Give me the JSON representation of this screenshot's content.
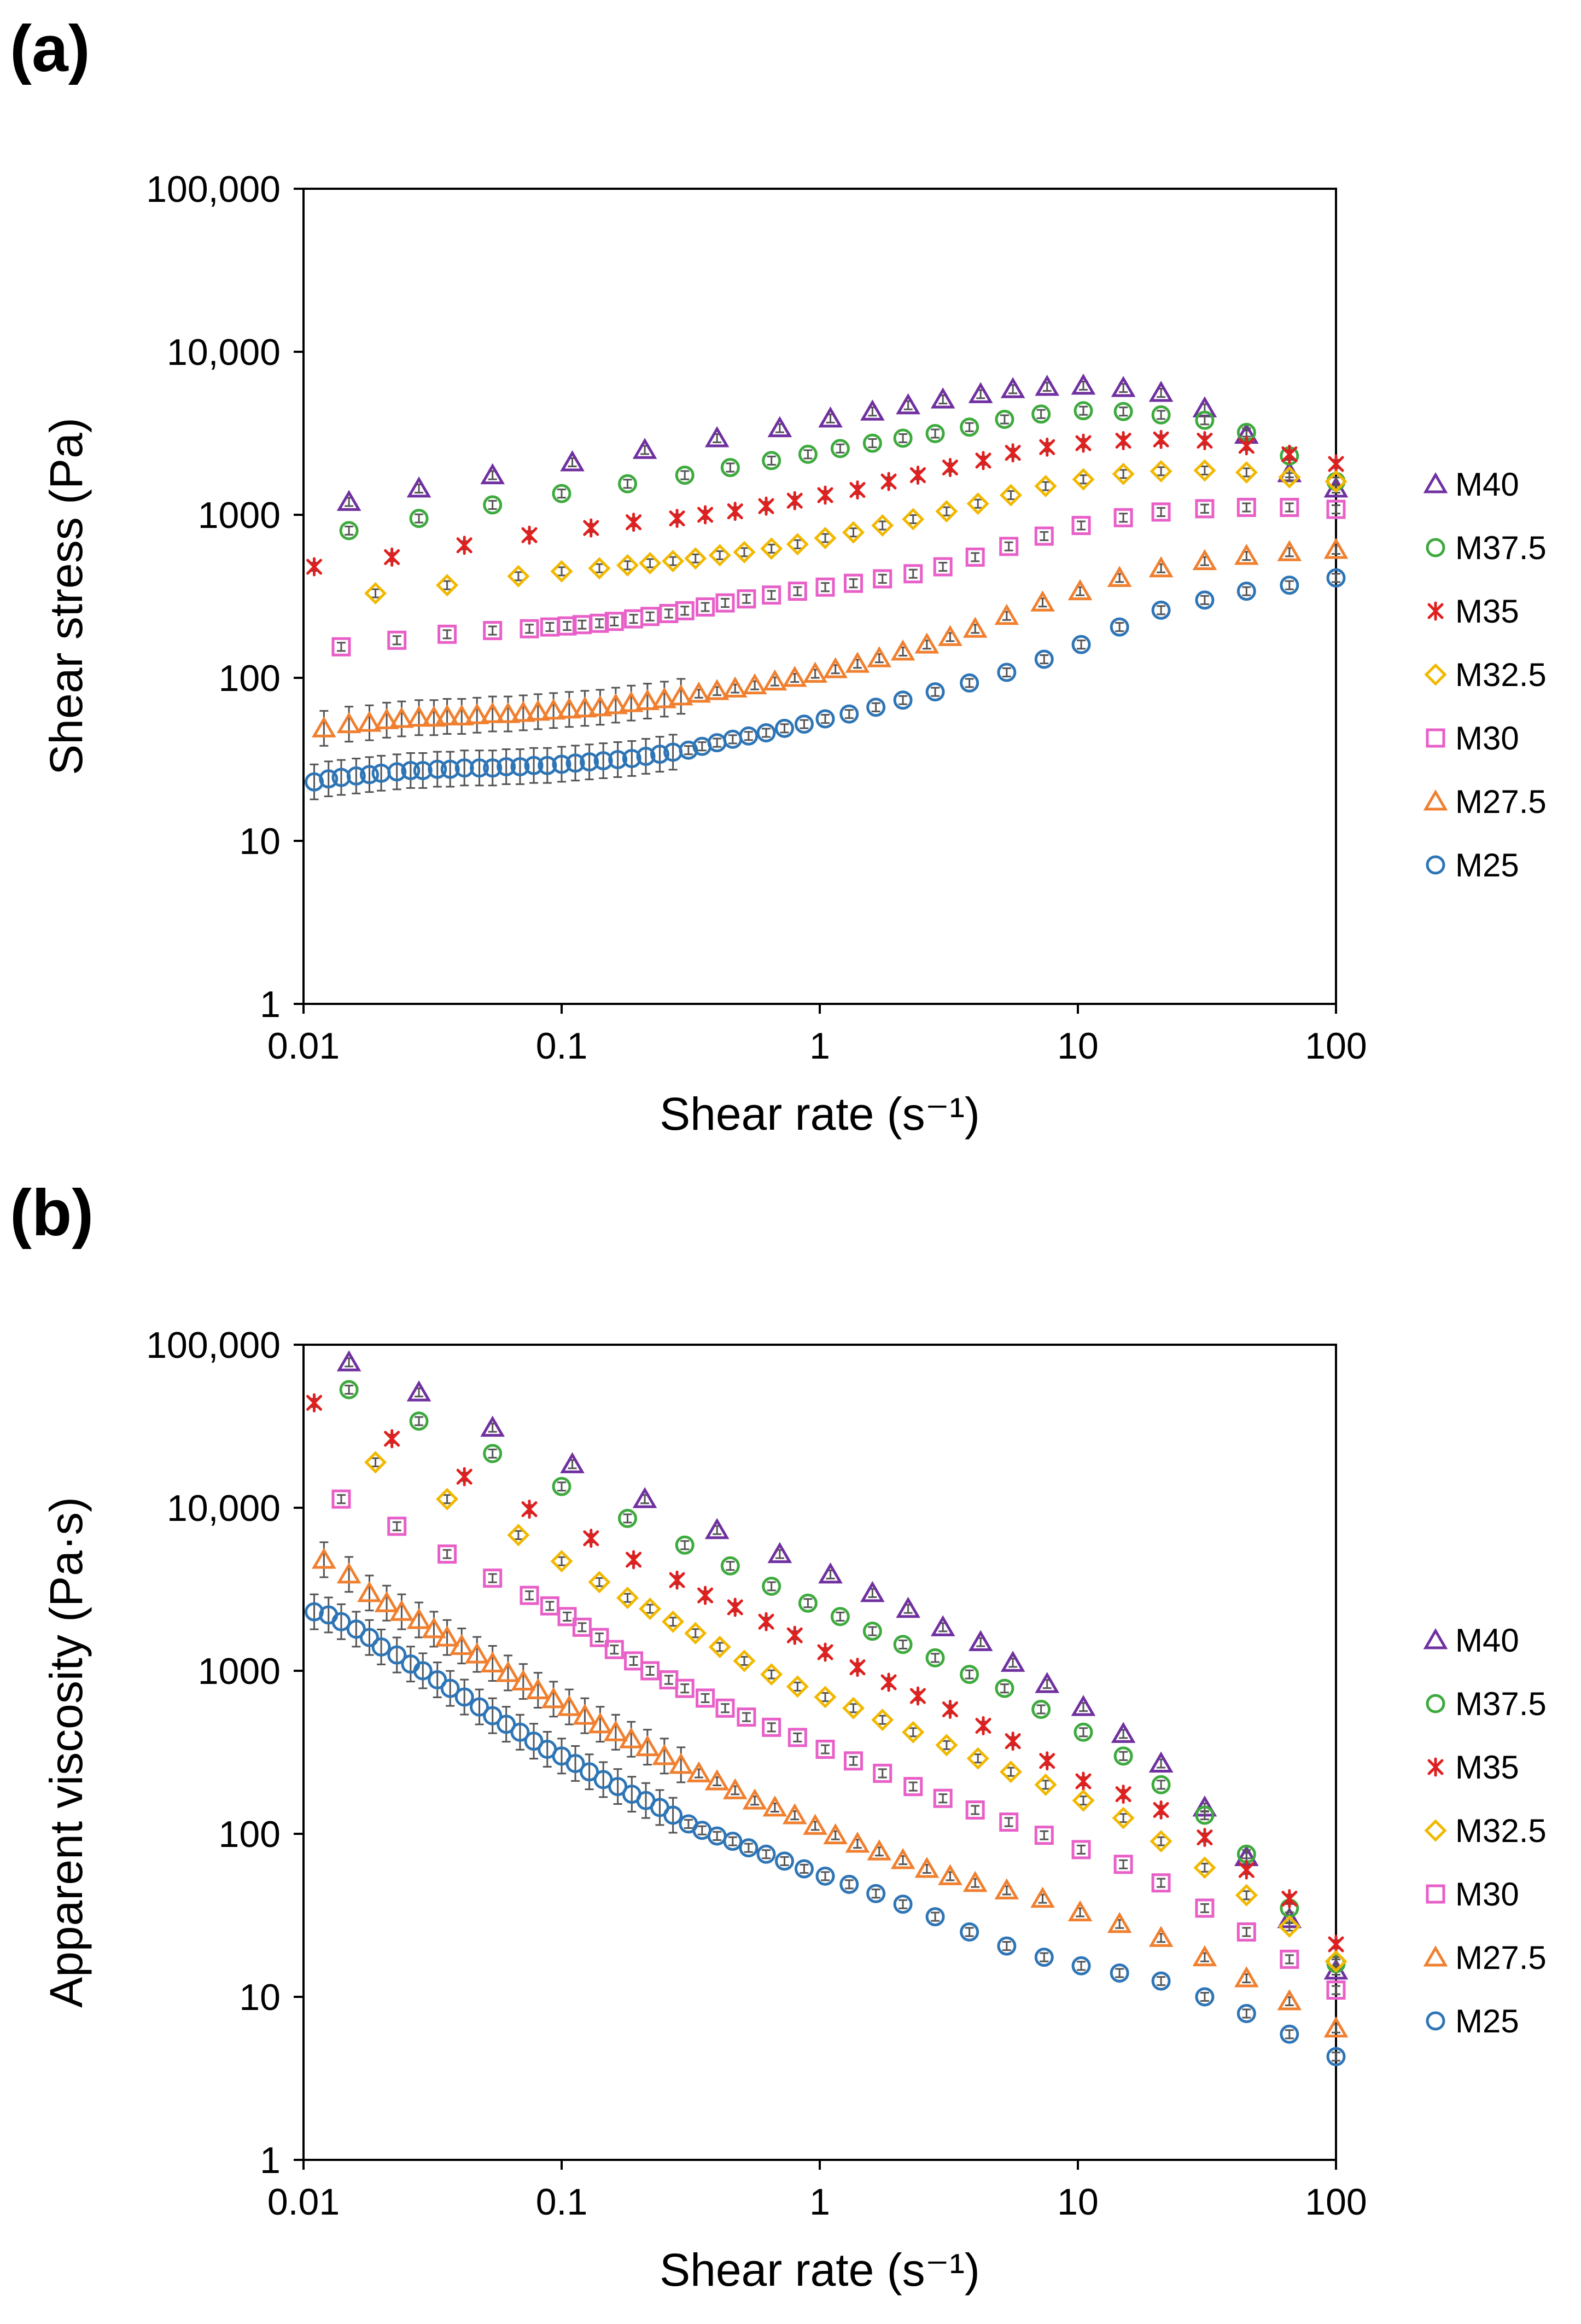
{
  "figure": {
    "panels": [
      {
        "label": "(a)"
      },
      {
        "label": "(b)"
      }
    ]
  },
  "chart_data": [
    {
      "type": "scatter",
      "panel": "(a)",
      "title": "",
      "xlabel": "Shear rate (s⁻¹)",
      "ylabel": "Shear stress (Pa)",
      "xscale": "log",
      "yscale": "log",
      "xlim": [
        0.01,
        100
      ],
      "ylim": [
        1,
        100000
      ],
      "xticks": [
        0.01,
        0.1,
        1,
        10,
        100
      ],
      "xtick_labels": [
        "0.01",
        "0.1",
        "1",
        "10",
        "100"
      ],
      "yticks": [
        1,
        10,
        100,
        1000,
        10000,
        100000
      ],
      "ytick_labels": [
        "1",
        "10",
        "100",
        "1000",
        "10,000",
        "100,000"
      ],
      "legend_position": "right",
      "series": [
        {
          "name": "M40",
          "marker": "triangle",
          "color": "#7030A0",
          "x": [
            0.015,
            0.028,
            0.054,
            0.11,
            0.21,
            0.4,
            0.7,
            1.1,
            1.6,
            2.2,
            3.0,
            4.2,
            5.6,
            7.6,
            10.5,
            15,
            21,
            31,
            45,
            66,
            100
          ],
          "y": [
            1200,
            1450,
            1750,
            2100,
            2500,
            2950,
            3400,
            3900,
            4300,
            4700,
            5100,
            5500,
            5900,
            6100,
            6200,
            6000,
            5600,
            4500,
            3100,
            1800,
            1450
          ]
        },
        {
          "name": "M37.5",
          "marker": "circle",
          "color": "#3DAA3D",
          "x": [
            0.015,
            0.028,
            0.054,
            0.1,
            0.18,
            0.3,
            0.45,
            0.65,
            0.9,
            1.2,
            1.6,
            2.1,
            2.8,
            3.8,
            5.2,
            7.2,
            10.5,
            15,
            21,
            31,
            45,
            66,
            100
          ],
          "y": [
            800,
            950,
            1150,
            1350,
            1550,
            1750,
            1950,
            2150,
            2350,
            2550,
            2750,
            2950,
            3150,
            3450,
            3850,
            4150,
            4350,
            4300,
            4100,
            3800,
            3200,
            2300,
            1600
          ]
        },
        {
          "name": "M35",
          "marker": "star",
          "color": "#E0201F",
          "x": [
            0.011,
            0.022,
            0.042,
            0.075,
            0.13,
            0.19,
            0.28,
            0.36,
            0.47,
            0.62,
            0.8,
            1.05,
            1.4,
            1.85,
            2.4,
            3.2,
            4.3,
            5.6,
            7.6,
            10.5,
            15,
            21,
            31,
            45,
            66,
            100
          ],
          "y": [
            480,
            550,
            650,
            750,
            830,
            900,
            950,
            1000,
            1050,
            1130,
            1220,
            1320,
            1420,
            1600,
            1750,
            1950,
            2150,
            2400,
            2600,
            2750,
            2850,
            2900,
            2850,
            2650,
            2350,
            2050
          ]
        },
        {
          "name": "M32.5",
          "marker": "diamond",
          "color": "#F2B800",
          "x": [
            0.019,
            0.036,
            0.068,
            0.1,
            0.14,
            0.18,
            0.22,
            0.27,
            0.33,
            0.41,
            0.51,
            0.65,
            0.82,
            1.05,
            1.35,
            1.75,
            2.3,
            3.1,
            4.1,
            5.5,
            7.5,
            10.5,
            15,
            21,
            31,
            45,
            66,
            100
          ],
          "y": [
            330,
            370,
            420,
            450,
            470,
            490,
            505,
            520,
            540,
            565,
            590,
            620,
            660,
            720,
            780,
            860,
            940,
            1050,
            1170,
            1320,
            1500,
            1650,
            1780,
            1850,
            1870,
            1820,
            1700,
            1600
          ]
        },
        {
          "name": "M30",
          "marker": "square",
          "color": "#E85FC8",
          "x": [
            0.014,
            0.023,
            0.036,
            0.054,
            0.075,
            0.09,
            0.105,
            0.12,
            0.14,
            0.16,
            0.19,
            0.22,
            0.26,
            0.3,
            0.36,
            0.43,
            0.52,
            0.65,
            0.82,
            1.05,
            1.35,
            1.75,
            2.3,
            3.0,
            4.0,
            5.4,
            7.4,
            10.3,
            15,
            21,
            31,
            45,
            66,
            100
          ],
          "y": [
            155,
            170,
            185,
            195,
            200,
            205,
            208,
            212,
            216,
            222,
            230,
            238,
            248,
            258,
            272,
            288,
            305,
            322,
            340,
            360,
            380,
            405,
            435,
            480,
            550,
            640,
            740,
            860,
            960,
            1040,
            1090,
            1110,
            1110,
            1080
          ]
        },
        {
          "name": "M27.5",
          "marker": "triangle",
          "color": "#F08030",
          "x": [
            0.012,
            0.015,
            0.018,
            0.021,
            0.024,
            0.028,
            0.032,
            0.036,
            0.041,
            0.047,
            0.054,
            0.062,
            0.071,
            0.081,
            0.093,
            0.107,
            0.123,
            0.141,
            0.162,
            0.186,
            0.215,
            0.25,
            0.29,
            0.34,
            0.4,
            0.47,
            0.56,
            0.67,
            0.8,
            0.96,
            1.15,
            1.4,
            1.7,
            2.1,
            2.6,
            3.2,
            4.0,
            5.3,
            7.3,
            10.2,
            14.5,
            21,
            31,
            45,
            66,
            100
          ],
          "y": [
            49,
            52,
            53,
            55,
            56,
            57,
            57,
            58,
            58,
            59,
            60,
            60,
            61,
            62,
            63,
            64,
            65,
            66,
            68,
            70,
            72,
            74,
            77,
            80,
            83,
            86,
            90,
            95,
            100,
            106,
            113,
            122,
            132,
            145,
            160,
            178,
            200,
            240,
            290,
            340,
            410,
            470,
            520,
            560,
            590,
            610
          ]
        },
        {
          "name": "M25",
          "marker": "circle",
          "color": "#2E75B6",
          "x": [
            0.011,
            0.0125,
            0.014,
            0.016,
            0.018,
            0.02,
            0.023,
            0.026,
            0.029,
            0.033,
            0.037,
            0.042,
            0.048,
            0.054,
            0.061,
            0.069,
            0.078,
            0.088,
            0.1,
            0.113,
            0.128,
            0.145,
            0.165,
            0.187,
            0.212,
            0.24,
            0.27,
            0.31,
            0.35,
            0.4,
            0.46,
            0.53,
            0.62,
            0.73,
            0.87,
            1.05,
            1.3,
            1.65,
            2.1,
            2.8,
            3.8,
            5.3,
            7.4,
            10.3,
            14.5,
            21,
            31,
            45,
            66,
            100
          ],
          "y": [
            23,
            24,
            24.5,
            25,
            25.5,
            26,
            26.5,
            27,
            27,
            27.5,
            27.5,
            28,
            28,
            28,
            28.5,
            28.5,
            29,
            29,
            29.5,
            30,
            30.5,
            31,
            31.5,
            32,
            33,
            34,
            35,
            36,
            38,
            40,
            42,
            44,
            46,
            49,
            52,
            56,
            60,
            66,
            73,
            82,
            93,
            108,
            130,
            160,
            205,
            260,
            300,
            340,
            370,
            410
          ]
        }
      ]
    },
    {
      "type": "scatter",
      "panel": "(b)",
      "title": "",
      "xlabel": "Shear rate (s⁻¹)",
      "ylabel": "Apparent viscosity (Pa·s)",
      "xscale": "log",
      "yscale": "log",
      "xlim": [
        0.01,
        100
      ],
      "ylim": [
        1,
        100000
      ],
      "xticks": [
        0.01,
        0.1,
        1,
        10,
        100
      ],
      "xtick_labels": [
        "0.01",
        "0.1",
        "1",
        "10",
        "100"
      ],
      "yticks": [
        1,
        10,
        100,
        1000,
        10000,
        100000
      ],
      "ytick_labels": [
        "1",
        "10",
        "100",
        "1000",
        "10,000",
        "100,000"
      ],
      "legend_position": "right",
      "series": [
        {
          "name": "M40",
          "marker": "triangle",
          "color": "#7030A0",
          "x": [
            0.015,
            0.028,
            0.054,
            0.11,
            0.21,
            0.4,
            0.7,
            1.1,
            1.6,
            2.2,
            3.0,
            4.2,
            5.6,
            7.6,
            10.5,
            15,
            21,
            31,
            45,
            66,
            100
          ],
          "y": [
            78000,
            51000,
            31000,
            18500,
            11300,
            7300,
            5200,
            3900,
            3000,
            2400,
            1850,
            1500,
            1120,
            830,
            600,
            410,
            270,
            145,
            72,
            30,
            14.5
          ]
        },
        {
          "name": "M37.5",
          "marker": "circle",
          "color": "#3DAA3D",
          "x": [
            0.015,
            0.028,
            0.054,
            0.1,
            0.18,
            0.3,
            0.45,
            0.65,
            0.9,
            1.2,
            1.6,
            2.1,
            2.8,
            3.8,
            5.2,
            7.2,
            10.5,
            15,
            21,
            31,
            45,
            66,
            100
          ],
          "y": [
            53000,
            34000,
            21500,
            13500,
            8600,
            5900,
            4400,
            3300,
            2600,
            2150,
            1750,
            1450,
            1200,
            950,
            780,
            580,
            420,
            300,
            200,
            130,
            75,
            35,
            16
          ]
        },
        {
          "name": "M35",
          "marker": "star",
          "color": "#E0201F",
          "x": [
            0.011,
            0.022,
            0.042,
            0.075,
            0.13,
            0.19,
            0.28,
            0.36,
            0.47,
            0.62,
            0.8,
            1.05,
            1.4,
            1.85,
            2.4,
            3.2,
            4.3,
            5.6,
            7.6,
            10.5,
            15,
            21,
            31,
            45,
            66,
            100
          ],
          "y": [
            44000,
            26500,
            15500,
            9800,
            6500,
            4800,
            3600,
            2900,
            2450,
            2000,
            1650,
            1300,
            1050,
            850,
            700,
            580,
            460,
            370,
            280,
            210,
            175,
            140,
            95,
            60,
            40,
            21
          ]
        },
        {
          "name": "M32.5",
          "marker": "diamond",
          "color": "#F2B800",
          "x": [
            0.019,
            0.036,
            0.068,
            0.1,
            0.14,
            0.18,
            0.22,
            0.27,
            0.33,
            0.41,
            0.51,
            0.65,
            0.82,
            1.05,
            1.35,
            1.75,
            2.3,
            3.1,
            4.1,
            5.5,
            7.5,
            10.5,
            15,
            21,
            31,
            45,
            66,
            100
          ],
          "y": [
            19000,
            11300,
            6800,
            4700,
            3500,
            2800,
            2400,
            2000,
            1700,
            1400,
            1150,
            950,
            800,
            690,
            590,
            500,
            420,
            350,
            290,
            240,
            200,
            160,
            125,
            90,
            62,
            42,
            27,
            16.5
          ]
        },
        {
          "name": "M30",
          "marker": "square",
          "color": "#E85FC8",
          "x": [
            0.014,
            0.023,
            0.036,
            0.054,
            0.075,
            0.09,
            0.105,
            0.12,
            0.14,
            0.16,
            0.19,
            0.22,
            0.26,
            0.3,
            0.36,
            0.43,
            0.52,
            0.65,
            0.82,
            1.05,
            1.35,
            1.75,
            2.3,
            3.0,
            4.0,
            5.4,
            7.4,
            10.3,
            15,
            21,
            31,
            45,
            66,
            100
          ],
          "y": [
            11300,
            7700,
            5200,
            3700,
            2900,
            2500,
            2150,
            1850,
            1600,
            1350,
            1150,
            1000,
            880,
            780,
            680,
            590,
            520,
            450,
            390,
            330,
            280,
            235,
            195,
            165,
            140,
            118,
            98,
            80,
            65,
            50,
            35,
            25,
            17,
            11
          ]
        },
        {
          "name": "M27.5",
          "marker": "triangle",
          "color": "#F08030",
          "x": [
            0.012,
            0.015,
            0.018,
            0.021,
            0.024,
            0.028,
            0.032,
            0.036,
            0.041,
            0.047,
            0.054,
            0.062,
            0.071,
            0.081,
            0.093,
            0.107,
            0.123,
            0.141,
            0.162,
            0.186,
            0.215,
            0.25,
            0.29,
            0.34,
            0.4,
            0.47,
            0.56,
            0.67,
            0.8,
            0.96,
            1.15,
            1.4,
            1.7,
            2.1,
            2.6,
            3.2,
            4.0,
            5.3,
            7.3,
            10.2,
            14.5,
            21,
            31,
            45,
            66,
            100
          ],
          "y": [
            4800,
            3900,
            3000,
            2600,
            2300,
            2050,
            1800,
            1600,
            1420,
            1260,
            1110,
            970,
            860,
            760,
            670,
            600,
            530,
            470,
            420,
            380,
            340,
            300,
            265,
            235,
            210,
            185,
            160,
            145,
            130,
            112,
            98,
            87,
            78,
            69,
            61,
            55,
            50,
            45,
            40,
            33,
            28,
            23,
            17.5,
            13,
            9.4,
            6.4
          ]
        },
        {
          "name": "M25",
          "marker": "circle",
          "color": "#2E75B6",
          "x": [
            0.011,
            0.0125,
            0.014,
            0.016,
            0.018,
            0.02,
            0.023,
            0.026,
            0.029,
            0.033,
            0.037,
            0.042,
            0.048,
            0.054,
            0.061,
            0.069,
            0.078,
            0.088,
            0.1,
            0.113,
            0.128,
            0.145,
            0.165,
            0.187,
            0.212,
            0.24,
            0.27,
            0.31,
            0.35,
            0.4,
            0.46,
            0.53,
            0.62,
            0.73,
            0.87,
            1.05,
            1.3,
            1.65,
            2.1,
            2.8,
            3.8,
            5.3,
            7.4,
            10.3,
            14.5,
            21,
            31,
            45,
            66,
            100
          ],
          "y": [
            2300,
            2200,
            2000,
            1800,
            1600,
            1400,
            1250,
            1100,
            1000,
            880,
            780,
            690,
            600,
            530,
            470,
            420,
            370,
            330,
            300,
            270,
            240,
            215,
            195,
            175,
            160,
            145,
            130,
            115,
            105,
            97,
            90,
            82,
            75,
            68,
            61,
            55,
            49,
            43,
            37,
            31,
            25,
            20.5,
            17.5,
            15.5,
            14,
            12.5,
            10,
            7.9,
            5.9,
            4.3
          ]
        }
      ]
    }
  ]
}
